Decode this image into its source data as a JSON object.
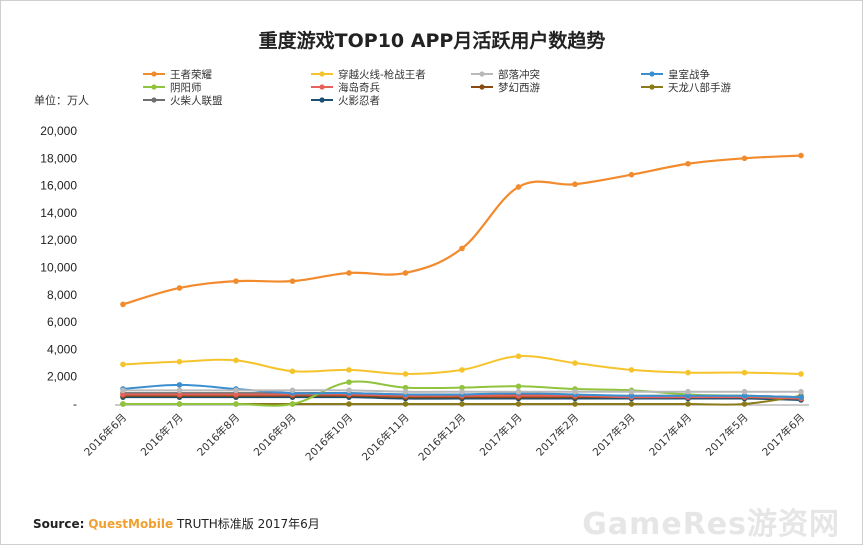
{
  "chart_data": {
    "type": "line",
    "title": "重度游戏TOP10 APP月活跃用户数趋势",
    "unit_label": "单位：万人",
    "ylim": [
      0,
      20000
    ],
    "yticks": [
      "20,000",
      "18,000",
      "16,000",
      "14,000",
      "12,000",
      "10,000",
      "8,000",
      "6,000",
      "4,000",
      "2,000",
      "-"
    ],
    "ytick_values": [
      20000,
      18000,
      16000,
      14000,
      12000,
      10000,
      8000,
      6000,
      4000,
      2000,
      0
    ],
    "x": [
      "2016年6月",
      "2016年7月",
      "2016年8月",
      "2016年9月",
      "2016年10月",
      "2016年11月",
      "2016年12月",
      "2017年1月",
      "2017年2月",
      "2017年3月",
      "2017年4月",
      "2017年5月",
      "2017年6月"
    ],
    "legend_position": "top",
    "grid": false,
    "series": [
      {
        "name": "王者荣耀",
        "color": "#f28a2e",
        "values": [
          7300,
          8500,
          9000,
          9000,
          9600,
          9600,
          11400,
          15900,
          16100,
          16800,
          17600,
          18000,
          18200
        ]
      },
      {
        "name": "穿越火线-枪战王者",
        "color": "#f5c42c",
        "values": [
          2900,
          3100,
          3200,
          2400,
          2500,
          2200,
          2500,
          3500,
          3000,
          2500,
          2300,
          2300,
          2200
        ]
      },
      {
        "name": "部落冲突",
        "color": "#b9b9b9",
        "values": [
          1000,
          1000,
          1000,
          1000,
          1000,
          900,
          900,
          900,
          900,
          900,
          900,
          900,
          900
        ]
      },
      {
        "name": "皇室战争",
        "color": "#3a8fd1",
        "values": [
          1100,
          1400,
          1100,
          800,
          800,
          700,
          700,
          800,
          700,
          600,
          600,
          600,
          500
        ]
      },
      {
        "name": "阴阳师",
        "color": "#8fc43c",
        "values": [
          0,
          0,
          0,
          0,
          1600,
          1200,
          1200,
          1300,
          1100,
          1000,
          700,
          600,
          500
        ]
      },
      {
        "name": "海岛奇兵",
        "color": "#e8605a",
        "values": [
          700,
          700,
          700,
          700,
          700,
          600,
          600,
          600,
          600,
          500,
          500,
          500,
          400
        ]
      },
      {
        "name": "梦幻西游",
        "color": "#8a4a12",
        "values": [
          600,
          600,
          600,
          600,
          600,
          500,
          500,
          500,
          500,
          500,
          500,
          500,
          400
        ]
      },
      {
        "name": "天龙八部手游",
        "color": "#8a7a18",
        "values": [
          0,
          0,
          0,
          0,
          0,
          0,
          0,
          0,
          0,
          0,
          0,
          0,
          600
        ]
      },
      {
        "name": "火柴人联盟",
        "color": "#6f6f6f",
        "values": [
          800,
          800,
          800,
          800,
          800,
          700,
          700,
          700,
          600,
          600,
          600,
          600,
          500
        ]
      },
      {
        "name": "火影忍者",
        "color": "#1b4f72",
        "values": [
          500,
          500,
          500,
          500,
          500,
          400,
          400,
          400,
          400,
          400,
          400,
          400,
          300
        ]
      }
    ]
  },
  "footer": {
    "source_label": "Source:",
    "source_brand": "QuestMobile",
    "source_rest": "TRUTH标准版 2017年6月",
    "watermark": "GameRes游资网"
  }
}
